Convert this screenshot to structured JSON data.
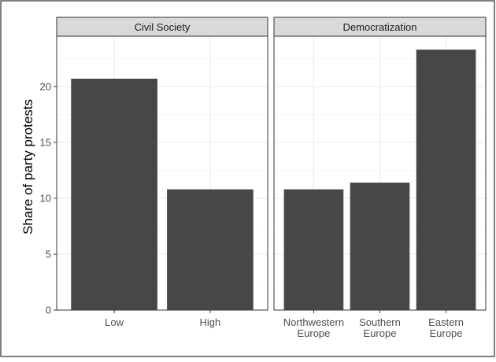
{
  "colors": {
    "bar": "#474747",
    "strip_fill": "#d9d9d9",
    "panel_border": "#333333",
    "grid_major": "#ebebeb",
    "grid_minor": "#f5f5f5",
    "tick_text": "#4d4d4d",
    "axis_title": "#000000",
    "frame": "#000000"
  },
  "chart_data": {
    "type": "bar",
    "ylabel": "Share of party protests",
    "xlabel": "",
    "ylim": [
      0,
      24.5
    ],
    "yticks": [
      0,
      5,
      10,
      15,
      20
    ],
    "grid": true,
    "facets": [
      {
        "strip_label": "Civil Society",
        "categories": [
          [
            "Low"
          ],
          [
            "High"
          ]
        ],
        "values": [
          20.7,
          10.8
        ]
      },
      {
        "strip_label": "Democratization",
        "categories": [
          [
            "Northwestern",
            "Europe"
          ],
          [
            "Southern",
            "Europe"
          ],
          [
            "Eastern",
            "Europe"
          ]
        ],
        "values": [
          10.8,
          11.4,
          23.3
        ]
      }
    ]
  }
}
